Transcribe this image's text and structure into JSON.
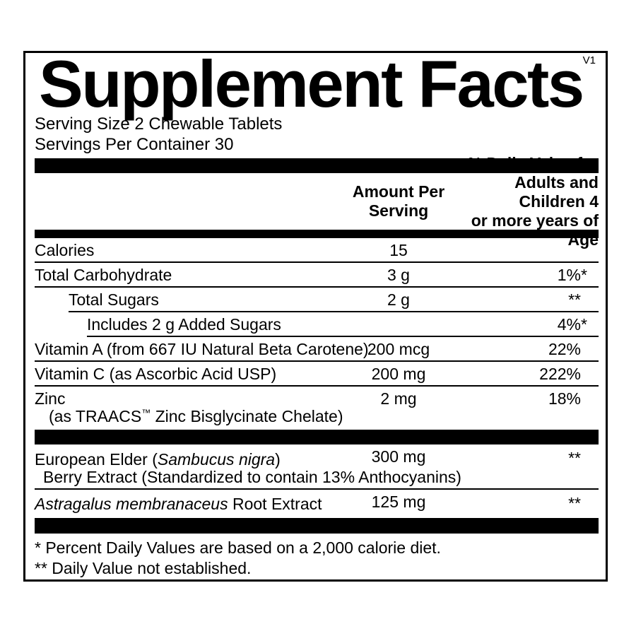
{
  "version": "V1",
  "title": "Supplement Facts",
  "serving": {
    "size_line": "Serving Size 2 Chewable Tablets",
    "per_container_line": "Servings Per Container 30"
  },
  "columns": {
    "amount_line1": "Amount Per",
    "amount_line2": "Serving",
    "dv_line1": "% Daily Value for",
    "dv_line2": "Adults and Children 4",
    "dv_line3": "or more years of Age"
  },
  "rows": [
    {
      "name": "Calories",
      "amount": "15",
      "dv": "",
      "dv_star": ""
    },
    {
      "name": "Total Carbohydrate",
      "amount": "3 g",
      "dv": "1%",
      "dv_star": "*"
    },
    {
      "name": "Total Sugars",
      "amount": "2 g",
      "dv": "**",
      "dv_star": ""
    },
    {
      "name": "Includes 2 g Added Sugars",
      "amount": "",
      "dv": "4%",
      "dv_star": "*"
    },
    {
      "name": "Vitamin A (from 667 IU Natural Beta Carotene)",
      "amount": "200 mcg",
      "dv": "22%",
      "dv_star": ""
    },
    {
      "name": "Vitamin C (as Ascorbic Acid USP)",
      "amount": "200 mg",
      "dv": "222%",
      "dv_star": ""
    },
    {
      "name": "Zinc",
      "name2_pre": "(as TRAACS",
      "name2_tm": "™",
      "name2_post": " Zinc Bisglycinate Chelate)",
      "amount": "2 mg",
      "dv": "18%",
      "dv_star": ""
    }
  ],
  "botanical_rows": [
    {
      "name_pre": "European Elder (",
      "name_italic": "Sambucus nigra",
      "name_post": ")",
      "line2": "Berry Extract (Standardized to contain 13% Anthocyanins)",
      "amount": "300 mg",
      "dv": "**",
      "dv_star": ""
    },
    {
      "name_italic": "Astragalus membranaceus",
      "name_post": " Root Extract",
      "amount": "125 mg",
      "dv": "**",
      "dv_star": ""
    }
  ],
  "footnotes": [
    "* Percent Daily Values are based on a 2,000 calorie diet.",
    "** Daily Value not established."
  ],
  "colors": {
    "text": "#000000",
    "background": "#ffffff",
    "bars": "#000000"
  }
}
